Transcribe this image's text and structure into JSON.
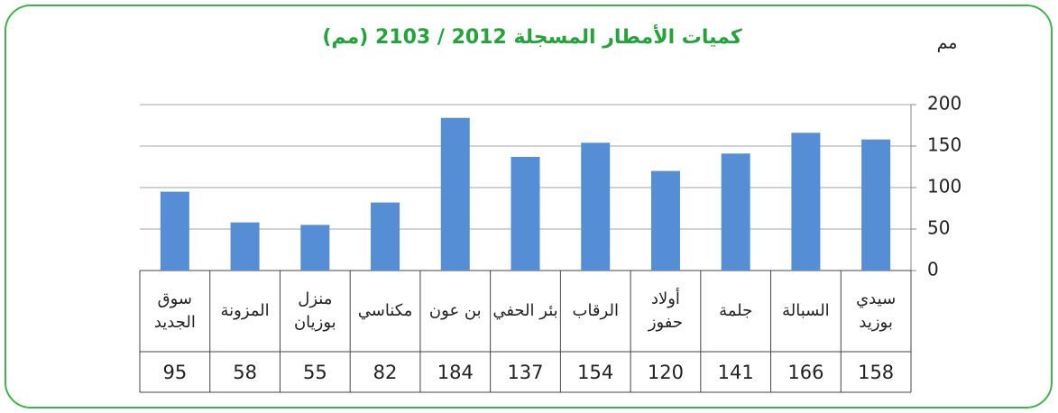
{
  "chart_data": {
    "type": "bar",
    "title": "كميات الأمطار المسجلة 2012 / 2103 (مم)",
    "y_label": "مم",
    "categories": [
      "سيدي بوزيد",
      "السبالة",
      "جلمة",
      "أولاد حفوز",
      "الرقاب",
      "بئر الحفي",
      "بن عون",
      "مكناسي",
      "منزل بوزيان",
      "المزونة",
      "سوق الجديد"
    ],
    "values": [
      158,
      166,
      141,
      120,
      154,
      137,
      184,
      82,
      55,
      58,
      95
    ],
    "color": "#558ed5",
    "ylim": [
      0,
      200
    ],
    "yticks": [
      0,
      50,
      100,
      150,
      200
    ],
    "grid": true
  }
}
